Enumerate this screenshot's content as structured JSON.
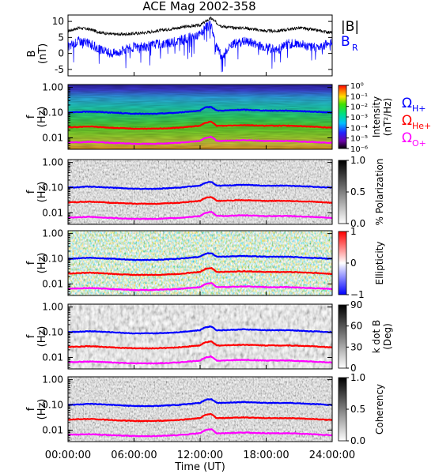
{
  "figure": {
    "title": "ACE Mag 2002-358",
    "time_ticks": [
      "00:00:00",
      "06:00:00",
      "12:00:00",
      "18:00:00",
      "24:00:00"
    ],
    "xlabel": "Time (UT)"
  },
  "colors": {
    "B_total": "#000000",
    "B_R": "#0000ff",
    "omega_H": "#0000ff",
    "omega_He": "#ff0000",
    "omega_O": "#ff00ff"
  },
  "legend_B": {
    "total": "|B|",
    "radial": "B",
    "radial_sub": "R"
  },
  "legend_omega": [
    {
      "symbol": "Ω",
      "sub": "H+",
      "color": "#0000ff"
    },
    {
      "symbol": "Ω",
      "sub": "He+",
      "color": "#ff0000"
    },
    {
      "symbol": "Ω",
      "sub": "O+",
      "color": "#ff00ff"
    }
  ],
  "freq_ticks": [
    "1.00",
    "0.10",
    "0.01"
  ],
  "panel_ylabels": {
    "B": "B",
    "B_unit": "(nT)",
    "f": "f",
    "f_unit": "(Hz)"
  },
  "colorbars": {
    "intensity": {
      "title": "Intensity",
      "unit": "(nT²/Hz)",
      "ticks": [
        "10⁰",
        "10⁻¹",
        "10⁻²",
        "10⁻³",
        "10⁻⁴",
        "10⁻⁵",
        "10⁻⁶"
      ]
    },
    "polarization": {
      "title": "% Polarization",
      "ticks": [
        "1.0",
        "0.5",
        "0.0"
      ]
    },
    "ellipticity": {
      "title": "Ellipticity",
      "ticks": [
        "1",
        "0",
        "−1"
      ]
    },
    "kdotb": {
      "title": "k dot B",
      "unit": "(Deg)",
      "ticks": [
        "90",
        "60",
        "30",
        "0"
      ]
    },
    "coherency": {
      "title": "Coherency",
      "ticks": [
        "1.0",
        "0.5",
        "0.0"
      ]
    }
  },
  "chart_data": [
    {
      "type": "line",
      "title": "ACE Mag 2002-358",
      "ylabel": "B (nT)",
      "ylim": [
        -7,
        12
      ],
      "yticks": [
        10,
        5,
        0,
        -5
      ],
      "x_hours": [
        0,
        1,
        2,
        3,
        4,
        5,
        6,
        7,
        8,
        9,
        10,
        11,
        12,
        12.5,
        13,
        13.5,
        14,
        15,
        16,
        17,
        18,
        19,
        20,
        21,
        22,
        23,
        24
      ],
      "series": [
        {
          "name": "|B|",
          "color": "#000000",
          "values": [
            7,
            8,
            7.5,
            6.5,
            6,
            6,
            6.2,
            6.5,
            7,
            7.5,
            8,
            8.5,
            8.8,
            10,
            11,
            9.5,
            8.5,
            8,
            8,
            7.5,
            7,
            7,
            7.5,
            8,
            7.5,
            7,
            6.5
          ]
        },
        {
          "name": "B_R",
          "color": "#0000ff",
          "values": [
            2,
            4,
            3,
            1,
            0,
            1,
            2,
            2,
            3,
            3,
            4,
            5,
            6,
            8,
            9,
            2,
            -1,
            3,
            4,
            3,
            2,
            1,
            3,
            3,
            2,
            2,
            4
          ]
        }
      ]
    },
    {
      "type": "heatmap",
      "title": "Intensity",
      "ylabel": "f (Hz)",
      "ylim": [
        0.0035,
        1.3
      ],
      "y_scale": "log",
      "x_hours": [
        0,
        2,
        4,
        6,
        8,
        10,
        12,
        12.5,
        13,
        13.5,
        14,
        16,
        18,
        20,
        22,
        24
      ],
      "series": [
        {
          "name": "Ω H+",
          "color": "#0000ff",
          "values": [
            0.1,
            0.11,
            0.1,
            0.09,
            0.09,
            0.1,
            0.12,
            0.16,
            0.17,
            0.12,
            0.12,
            0.13,
            0.12,
            0.12,
            0.11,
            0.1
          ]
        },
        {
          "name": "Ω He+",
          "color": "#ff0000",
          "values": [
            0.026,
            0.028,
            0.025,
            0.023,
            0.023,
            0.025,
            0.03,
            0.04,
            0.043,
            0.03,
            0.03,
            0.032,
            0.03,
            0.03,
            0.028,
            0.025
          ]
        },
        {
          "name": "Ω O+",
          "color": "#ff00ff",
          "values": [
            0.0065,
            0.0069,
            0.0063,
            0.0058,
            0.0058,
            0.0063,
            0.0075,
            0.01,
            0.011,
            0.0075,
            0.0075,
            0.008,
            0.0075,
            0.0075,
            0.0069,
            0.0063
          ]
        }
      ]
    },
    {
      "type": "heatmap",
      "title": "% Polarization",
      "ylabel": "f (Hz)",
      "y_scale": "log"
    },
    {
      "type": "heatmap",
      "title": "Ellipticity",
      "ylabel": "f (Hz)",
      "y_scale": "log"
    },
    {
      "type": "heatmap",
      "title": "k dot B (Deg)",
      "ylabel": "f (Hz)",
      "y_scale": "log"
    },
    {
      "type": "heatmap",
      "title": "Coherency",
      "ylabel": "f (Hz)",
      "y_scale": "log",
      "xlabel": "Time (UT)"
    }
  ]
}
